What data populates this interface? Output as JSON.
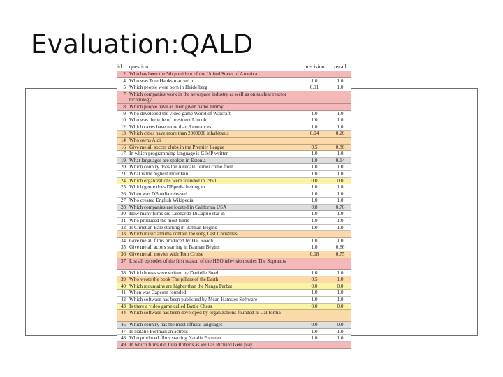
{
  "slide": {
    "title": "Evaluation:QALD"
  },
  "table": {
    "headers": {
      "id": "id",
      "question": "question",
      "precision": "precision",
      "recall": "recall"
    },
    "row_colors": {
      "red": "#f4b8b8",
      "orange": "#fbd9a8",
      "yellow": "#fbf3a6",
      "white": "#ffffff",
      "gray": "#dedede"
    },
    "rows": [
      {
        "id": "2",
        "question": "Who has been the 5th president of the United States of America",
        "precision": "",
        "recall": "",
        "color": "red"
      },
      {
        "id": "4",
        "question": "Who was Tom Hanks married to",
        "precision": "1.0",
        "recall": "1.0",
        "color": "white"
      },
      {
        "id": "5",
        "question": "Which people were born in Heidelberg",
        "precision": "0.91",
        "recall": "1.0",
        "color": "white"
      },
      {
        "id": "7",
        "question": "Which companies work in the aerospace industry as well as on nuclear reactor technology",
        "precision": "",
        "recall": "",
        "color": "red"
      },
      {
        "id": "8",
        "question": "Which people have as their given name Jimmy",
        "precision": "",
        "recall": "",
        "color": "red"
      },
      {
        "id": "9",
        "question": "Who developed the video game World of Warcraft",
        "precision": "1.0",
        "recall": "1.0",
        "color": "white"
      },
      {
        "id": "10",
        "question": "Who was the wife of president Lincoln",
        "precision": "1.0",
        "recall": "1.0",
        "color": "white"
      },
      {
        "id": "12",
        "question": "Which caves have more than 3 entrances",
        "precision": "1.0",
        "recall": "1.0",
        "color": "white"
      },
      {
        "id": "13",
        "question": "Which cities have more than 2000000 inhabitants",
        "precision": "0.04",
        "recall": "0.26",
        "color": "orange"
      },
      {
        "id": "14",
        "question": "Who owns Aldi",
        "precision": "",
        "recall": "",
        "color": "orange"
      },
      {
        "id": "16",
        "question": "Give me all soccer clubs in the Premier League",
        "precision": "0.5",
        "recall": "0.86",
        "color": "orange"
      },
      {
        "id": "17",
        "question": "In which programming language is GIMP written",
        "precision": "1.0",
        "recall": "1.0",
        "color": "white"
      },
      {
        "id": "19",
        "question": "What languages are spoken in Estonia",
        "precision": "1.0",
        "recall": "0.14",
        "color": "gray"
      },
      {
        "id": "20",
        "question": "Which country does the Airedale Terrier come from",
        "precision": "1.0",
        "recall": "1.0",
        "color": "white"
      },
      {
        "id": "21",
        "question": "What is the highest mountain",
        "precision": "1.0",
        "recall": "1.0",
        "color": "white"
      },
      {
        "id": "24",
        "question": "Which organizations were founded in 1950",
        "precision": "0.0",
        "recall": "0.0",
        "color": "yellow"
      },
      {
        "id": "25",
        "question": "Which genre does DBpedia belong to",
        "precision": "1.0",
        "recall": "1.0",
        "color": "white"
      },
      {
        "id": "26",
        "question": "When was DBpedia released",
        "precision": "1.0",
        "recall": "1.0",
        "color": "white"
      },
      {
        "id": "27",
        "question": "Who created English Wikipedia",
        "precision": "1.0",
        "recall": "1.0",
        "color": "white"
      },
      {
        "id": "28",
        "question": "Which companies are located in California USA",
        "precision": "0.8",
        "recall": "0.76",
        "color": "gray"
      },
      {
        "id": "30",
        "question": "How many films did Leonardo DiCaprio star in",
        "precision": "1.0",
        "recall": "1.0",
        "color": "white"
      },
      {
        "id": "31",
        "question": "Who produced the most films",
        "precision": "1.0",
        "recall": "1.0",
        "color": "white"
      },
      {
        "id": "32",
        "question": "Is Christian Bale starring in Batman Begins",
        "precision": "1.0",
        "recall": "1.0",
        "color": "white"
      },
      {
        "id": "33",
        "question": "Which music albums contain the song Last Christmas",
        "precision": "",
        "recall": "",
        "color": "orange"
      },
      {
        "id": "34",
        "question": "Give me all films produced by Hal Roach",
        "precision": "1.0",
        "recall": "1.0",
        "color": "white"
      },
      {
        "id": "35",
        "question": "Give me all actors starring in Batman Begins",
        "precision": "1.0",
        "recall": "0.86",
        "color": "white"
      },
      {
        "id": "36",
        "question": "Give me all movies with Tom Cruise",
        "precision": "0.08",
        "recall": "0.75",
        "color": "orange"
      },
      {
        "id": "37",
        "question": "List all episodes of the first season of the HBO television series The Sopranos",
        "precision": "",
        "recall": "",
        "color": "red"
      },
      {
        "id": "38",
        "question": "Which books were written by Danielle Steel",
        "precision": "1.0",
        "recall": "1.0",
        "color": "white"
      },
      {
        "id": "39",
        "question": "Who wrote the book The pillars of the Earth",
        "precision": "0.5",
        "recall": "1.0",
        "color": "orange"
      },
      {
        "id": "40",
        "question": "Which mountains are higher than the Nanga Parbat",
        "precision": "0.0",
        "recall": "0.0",
        "color": "yellow"
      },
      {
        "id": "41",
        "question": "When was Capcom founded",
        "precision": "1.0",
        "recall": "1.0",
        "color": "white"
      },
      {
        "id": "42",
        "question": "Which software has been published by Mean Hamster Software",
        "precision": "1.0",
        "recall": "1.0",
        "color": "white"
      },
      {
        "id": "43",
        "question": "Is there a video game called Battle Chess",
        "precision": "0.0",
        "recall": "0.0",
        "color": "yellow"
      },
      {
        "id": "44",
        "question": "Which software has been developed by organizations founded in California",
        "precision": "",
        "recall": "",
        "color": "orange"
      },
      {
        "id": "45",
        "question": "Which country has the most official languages",
        "precision": "0.0",
        "recall": "0.0",
        "color": "gray"
      },
      {
        "id": "47",
        "question": "Is Natalie Portman an actress",
        "precision": "1.0",
        "recall": "1.0",
        "color": "white"
      },
      {
        "id": "48",
        "question": "Who produced films starring Natalie Portman",
        "precision": "1.0",
        "recall": "1.0",
        "color": "white"
      },
      {
        "id": "49",
        "question": "In which films did Julia Roberts as well as Richard Gere play",
        "precision": "",
        "recall": "",
        "color": "red"
      }
    ]
  }
}
